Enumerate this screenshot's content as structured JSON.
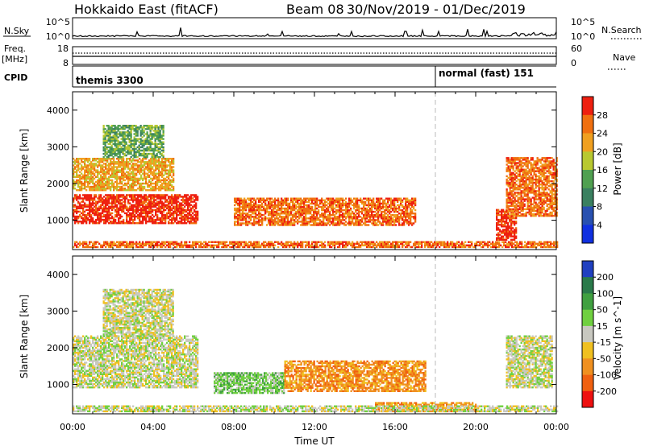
{
  "header": {
    "station": "Hokkaido East (fitACF)",
    "beam": "Beam 08",
    "date_range": "30/Nov/2019 - 01/Dec/2019"
  },
  "aux_panels": {
    "nsky": {
      "left_label": "N.Sky",
      "left_ticks": [
        "10^5",
        "10^0"
      ],
      "right_ticks": [
        "10^5",
        "10^0"
      ],
      "right_label": "N.Search"
    },
    "freq": {
      "left_label_1": "Freq.",
      "left_label_2": "[MHz]",
      "left_ticks": [
        "18",
        "8"
      ],
      "right_ticks": [
        "60",
        "0"
      ],
      "right_label": "Nave"
    },
    "cpid": {
      "label": "CPID",
      "modes": [
        {
          "text": "themis 3300",
          "start_hour": 0
        },
        {
          "text": "normal (fast) 151",
          "start_hour": 18
        }
      ]
    }
  },
  "chart_data": [
    {
      "type": "heatmap",
      "name": "power",
      "ylabel": "Slant Range [km]",
      "xlabel": "Time UT",
      "x_range_hours": [
        0,
        24
      ],
      "ylim": [
        200,
        4500
      ],
      "yticks": [
        1000,
        2000,
        3000,
        4000
      ],
      "xtick_labels": [
        "00:00",
        "04:00",
        "08:00",
        "12:00",
        "16:00",
        "20:00",
        "00:00"
      ],
      "colorbar": {
        "label": "Power [dB]",
        "ticks": [
          "4",
          "8",
          "12",
          "16",
          "20",
          "24",
          "28"
        ],
        "colors": [
          "#1030e0",
          "#2850b0",
          "#3a8060",
          "#50a050",
          "#b8c830",
          "#f0a020",
          "#f07010",
          "#ee2010"
        ]
      },
      "regions": [
        {
          "t0": 0.0,
          "t1": 6.2,
          "r0": 900,
          "r1": 1700,
          "level": 7
        },
        {
          "t0": 0.0,
          "t1": 5.0,
          "r0": 1800,
          "r1": 2700,
          "level": 5
        },
        {
          "t0": 1.5,
          "t1": 4.5,
          "r0": 2700,
          "r1": 3600,
          "level": 3
        },
        {
          "t0": 8.0,
          "t1": 17.0,
          "r0": 850,
          "r1": 1600,
          "level": 6
        },
        {
          "t0": 21.0,
          "t1": 22.0,
          "r0": 450,
          "r1": 1300,
          "level": 7
        },
        {
          "t0": 21.5,
          "t1": 24.0,
          "r0": 1100,
          "r1": 2700,
          "level": 6
        },
        {
          "t0": 0.0,
          "t1": 24.0,
          "r0": 250,
          "r1": 400,
          "level": 6
        }
      ]
    },
    {
      "type": "heatmap",
      "name": "velocity",
      "ylabel": "Slant Range [km]",
      "xlabel": "Time UT",
      "x_range_hours": [
        0,
        24
      ],
      "ylim": [
        200,
        4500
      ],
      "yticks": [
        1000,
        2000,
        3000,
        4000
      ],
      "xtick_labels": [
        "00:00",
        "04:00",
        "08:00",
        "12:00",
        "16:00",
        "20:00",
        "00:00"
      ],
      "colorbar": {
        "label": "Velocity [m s^-1]",
        "ticks": [
          "200",
          "100",
          "50",
          "15",
          "-15",
          "-50",
          "-100",
          "-200"
        ],
        "colors": [
          "#2040c0",
          "#2a7a4a",
          "#40a040",
          "#70d040",
          "#c8c8c0",
          "#f0c020",
          "#f09020",
          "#f06010",
          "#ee1010"
        ]
      },
      "regions": [
        {
          "t0": 0.0,
          "t1": 6.2,
          "r0": 900,
          "r1": 2300,
          "level": 4
        },
        {
          "t0": 1.5,
          "t1": 5.0,
          "r0": 2300,
          "r1": 3600,
          "level": 4
        },
        {
          "t0": 7.0,
          "t1": 10.5,
          "r0": 750,
          "r1": 1300,
          "level": 3
        },
        {
          "t0": 10.5,
          "t1": 17.5,
          "r0": 800,
          "r1": 1650,
          "level": 6
        },
        {
          "t0": 15.0,
          "t1": 20.0,
          "r0": 250,
          "r1": 500,
          "level": 6
        },
        {
          "t0": 21.5,
          "t1": 23.8,
          "r0": 900,
          "r1": 2300,
          "level": 4
        },
        {
          "t0": 0.0,
          "t1": 24.0,
          "r0": 250,
          "r1": 400,
          "level": 4
        }
      ]
    }
  ]
}
